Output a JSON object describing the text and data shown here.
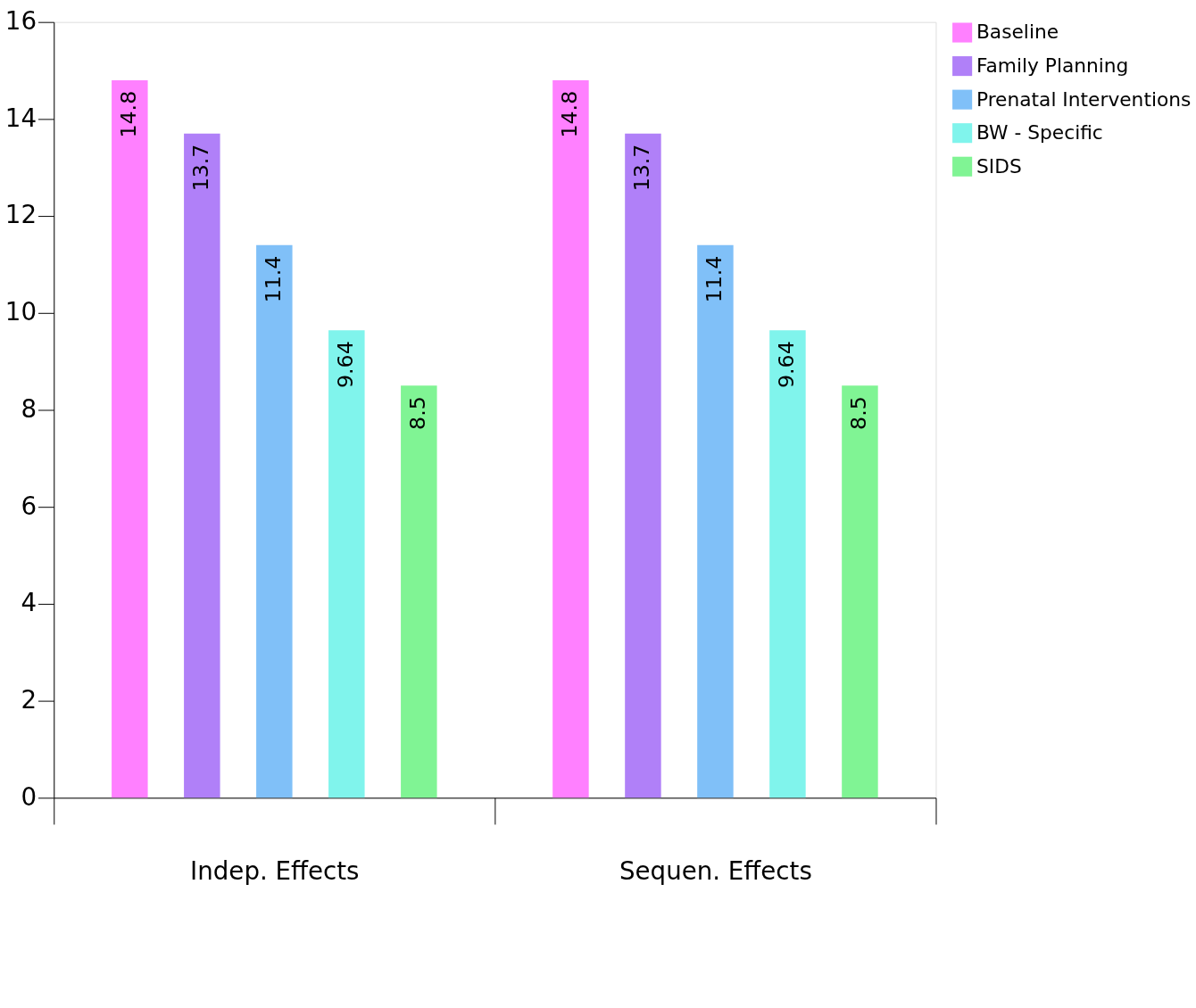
{
  "chart_data": {
    "type": "bar",
    "categories": [
      "Indep. Effects",
      "Sequen. Effects"
    ],
    "series": [
      {
        "name": "Baseline",
        "color": "#ff80ff",
        "values": [
          14.8,
          14.8
        ]
      },
      {
        "name": "Family Planning",
        "color": "#b080f8",
        "values": [
          13.7,
          13.7
        ]
      },
      {
        "name": "Prenatal Interventions",
        "color": "#80c0f8",
        "values": [
          11.4,
          11.4
        ]
      },
      {
        "name": "BW - Specific",
        "color": "#80f4ec",
        "values": [
          9.64,
          9.64
        ]
      },
      {
        "name": "SIDS",
        "color": "#80f494",
        "values": [
          8.5,
          8.5
        ]
      }
    ],
    "ylim": [
      0,
      16
    ],
    "yticks": [
      0,
      2,
      4,
      6,
      8,
      10,
      12,
      14,
      16
    ],
    "data_labels": true,
    "grid": false,
    "legend": "top right"
  }
}
